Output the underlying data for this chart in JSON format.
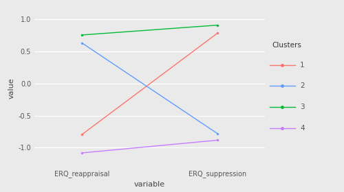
{
  "clusters": [
    1,
    2,
    3,
    4
  ],
  "reappraisal": [
    -0.795,
    0.632,
    0.755,
    -1.08
  ],
  "suppression": [
    0.783,
    -0.779,
    0.908,
    -0.882
  ],
  "colors": [
    "#F8766D",
    "#619CFF",
    "#00BA38",
    "#C77CFF"
  ],
  "x_labels": [
    "ERQ_reappraisal",
    "ERQ_suppression"
  ],
  "xlabel": "variable",
  "ylabel": "value",
  "legend_title": "Clusters",
  "ylim": [
    -1.3,
    1.15
  ],
  "yticks": [
    -1.0,
    -0.5,
    0.0,
    0.5,
    1.0
  ],
  "ytick_labels": [
    "-1.0",
    "-0.5",
    "0.0",
    "0.5",
    "1.0"
  ],
  "bg_color": "#EAEAEA",
  "panel_bg": "#EAEAEA",
  "grid_color": "#FFFFFF",
  "legend_bg": "#FFFFFF",
  "figsize": [
    5.0,
    2.8
  ],
  "dpi": 100
}
